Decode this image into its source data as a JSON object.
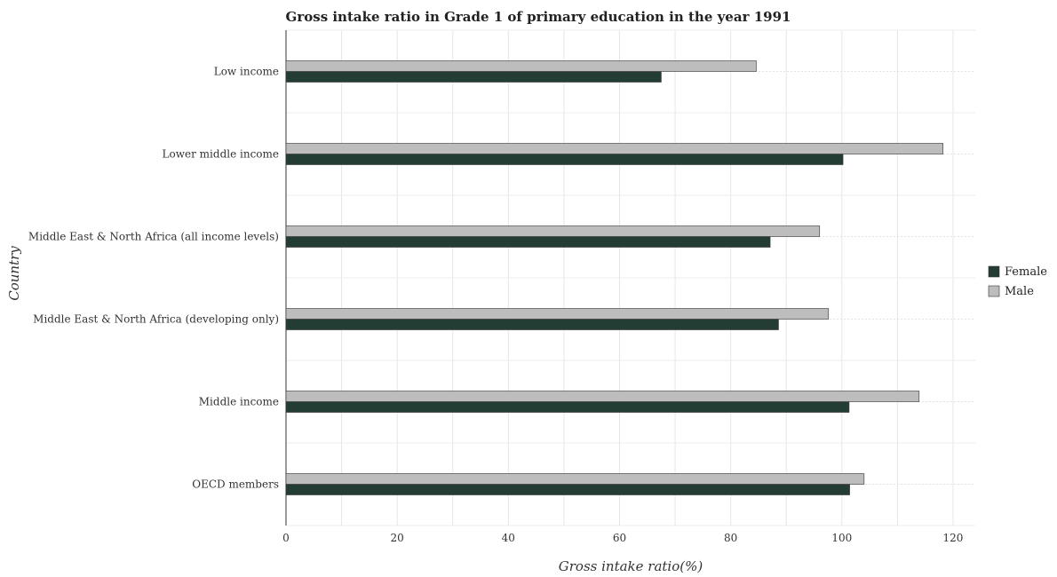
{
  "chart_data": {
    "type": "bar",
    "orientation": "horizontal",
    "title": "Gross intake ratio in Grade 1 of primary education in the year 1991",
    "xlabel": "Gross intake ratio(%)",
    "ylabel": "Country",
    "xlim": [
      0,
      124
    ],
    "xticks": [
      "0",
      "20",
      "40",
      "60",
      "80",
      "100",
      "120"
    ],
    "grid": true,
    "legend_position": "right",
    "categories": [
      "Low income",
      "Lower middle income",
      "Middle East & North Africa (all income levels)",
      "Middle East & North Africa (developing only)",
      "Middle income",
      "OECD members"
    ],
    "series": [
      {
        "name": "Female",
        "color": "#233d34",
        "values": [
          67.5,
          100.2,
          87.1,
          88.6,
          101.3,
          101.4
        ]
      },
      {
        "name": "Male",
        "color": "#bdbdbd",
        "values": [
          84.6,
          118.2,
          96.0,
          97.6,
          113.9,
          104.0
        ]
      }
    ]
  }
}
